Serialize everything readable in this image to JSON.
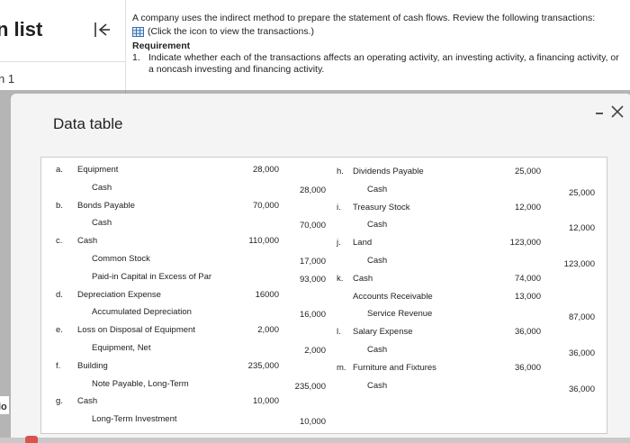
{
  "sidebar": {
    "title": "n list",
    "part_label": "n 1"
  },
  "instructions": {
    "intro": "A company uses the indirect method to prepare the statement of cash flows. Review the following transactions:",
    "click_text": "(Click the icon to view the transactions.)",
    "requirement_title": "Requirement",
    "requirement_num": "1.",
    "requirement_text": "Indicate whether each of the transactions affects an operating activity, an investing activity, a financing activity, or a noncash investing and financing activity."
  },
  "modal": {
    "title": "Data table",
    "minimize_glyph": "–",
    "close_glyph": "✕"
  },
  "footer": {
    "lo_text": "lo"
  },
  "table": {
    "left": [
      {
        "letter": "a.",
        "account": "Equipment",
        "debit": "28,000",
        "credit": ""
      },
      {
        "letter": "",
        "account": "Cash",
        "debit": "",
        "credit": "28,000"
      },
      {
        "letter": "b.",
        "account": "Bonds Payable",
        "debit": "70,000",
        "credit": ""
      },
      {
        "letter": "",
        "account": "Cash",
        "debit": "",
        "credit": "70,000"
      },
      {
        "letter": "c.",
        "account": "Cash",
        "debit": "110,000",
        "credit": ""
      },
      {
        "letter": "",
        "account": "Common Stock",
        "debit": "",
        "credit": "17,000"
      },
      {
        "letter": "",
        "account": "Paid-in Capital in Excess of Par",
        "debit": "",
        "credit": "93,000"
      },
      {
        "letter": "d.",
        "account": "Depreciation Expense",
        "debit": "16000",
        "credit": ""
      },
      {
        "letter": "",
        "account": "Accumulated Depreciation",
        "debit": "",
        "credit": "16,000"
      },
      {
        "letter": "e.",
        "account": "Loss on Disposal of Equipment",
        "debit": "2,000",
        "credit": ""
      },
      {
        "letter": "",
        "account": "Equipment, Net",
        "debit": "",
        "credit": "2,000"
      },
      {
        "letter": "f.",
        "account": "Building",
        "debit": "235,000",
        "credit": ""
      },
      {
        "letter": "",
        "account": "Note Payable, Long-Term",
        "debit": "",
        "credit": "235,000"
      },
      {
        "letter": "g.",
        "account": "Cash",
        "debit": "10,000",
        "credit": ""
      },
      {
        "letter": "",
        "account": "Long-Term Investment",
        "debit": "",
        "credit": "10,000"
      }
    ],
    "right": [
      {
        "letter": "h.",
        "account": "Dividends Payable",
        "debit": "25,000",
        "credit": ""
      },
      {
        "letter": "",
        "account": "Cash",
        "debit": "",
        "credit": "25,000"
      },
      {
        "letter": "i.",
        "account": "Treasury Stock",
        "debit": "12,000",
        "credit": ""
      },
      {
        "letter": "",
        "account": "Cash",
        "debit": "",
        "credit": "12,000"
      },
      {
        "letter": "j.",
        "account": "Land",
        "debit": "123,000",
        "credit": ""
      },
      {
        "letter": "",
        "account": "Cash",
        "debit": "",
        "credit": "123,000"
      },
      {
        "letter": "k.",
        "account": "Cash",
        "debit": "74,000",
        "credit": ""
      },
      {
        "letter": "",
        "account": "Accounts Receivable",
        "debit": "13,000",
        "credit": ""
      },
      {
        "letter": "",
        "account": "Service Revenue",
        "debit": "",
        "credit": "87,000"
      },
      {
        "letter": "l.",
        "account": "Salary Expense",
        "debit": "36,000",
        "credit": ""
      },
      {
        "letter": "",
        "account": "Cash",
        "debit": "",
        "credit": "36,000"
      },
      {
        "letter": "m.",
        "account": "Furniture and Fixtures",
        "debit": "36,000",
        "credit": ""
      },
      {
        "letter": "",
        "account": "Cash",
        "debit": "",
        "credit": "36,000"
      }
    ]
  }
}
